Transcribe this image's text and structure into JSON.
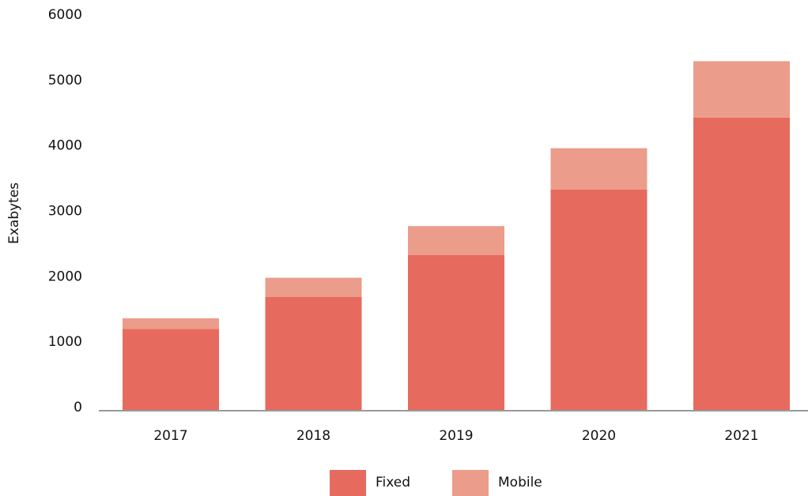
{
  "chart_data": {
    "type": "stacked_bar",
    "y_label": "Exabytes",
    "categories": [
      "2017",
      "2018",
      "2019",
      "2020",
      "2021"
    ],
    "series": [
      {
        "name": "Fixed",
        "color": "#e66b5e",
        "values": [
          1240,
          1730,
          2370,
          3370,
          4470
        ]
      },
      {
        "name": "Mobile",
        "color": "#eb9c8a",
        "values": [
          160,
          290,
          440,
          630,
          860
        ]
      }
    ],
    "ylim": [
      0,
      6000
    ],
    "yticks": [
      0,
      1000,
      2000,
      3000,
      4000,
      5000,
      6000
    ],
    "grid": false,
    "legend": "bottom"
  }
}
